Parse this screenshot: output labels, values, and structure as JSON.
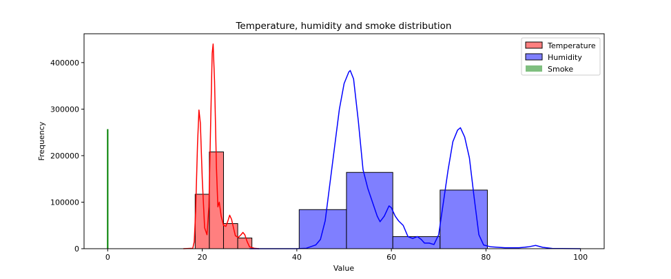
{
  "chart_data": {
    "type": "histogram",
    "title": "Temperature, humidity and smoke distribution",
    "xlabel": "Value",
    "ylabel": "Frequency",
    "xlim": [
      -5,
      105
    ],
    "ylim": [
      0,
      462000
    ],
    "x_ticks": [
      0,
      20,
      40,
      60,
      80,
      100
    ],
    "y_ticks": [
      0,
      100000,
      200000,
      300000,
      400000
    ],
    "legend_position": "top-right",
    "series": [
      {
        "name": "Temperature",
        "color": "#ff0000",
        "fill": "#ff7f7f",
        "bins": [
          {
            "x0": 18.5,
            "x1": 21.5,
            "count": 117000
          },
          {
            "x0": 21.5,
            "x1": 24.5,
            "count": 208000
          },
          {
            "x0": 24.5,
            "x1": 27.5,
            "count": 54000
          },
          {
            "x0": 27.5,
            "x1": 30.5,
            "count": 23000
          }
        ],
        "kde": [
          [
            16.0,
            0
          ],
          [
            18.0,
            1000
          ],
          [
            18.3,
            15000
          ],
          [
            18.6,
            80000
          ],
          [
            19.0,
            225000
          ],
          [
            19.3,
            298000
          ],
          [
            19.6,
            270000
          ],
          [
            20.0,
            150000
          ],
          [
            20.5,
            45000
          ],
          [
            21.0,
            30000
          ],
          [
            21.4,
            90000
          ],
          [
            21.8,
            280000
          ],
          [
            22.1,
            420000
          ],
          [
            22.3,
            440000
          ],
          [
            22.6,
            360000
          ],
          [
            23.0,
            175000
          ],
          [
            23.3,
            90000
          ],
          [
            23.6,
            100000
          ],
          [
            24.0,
            70000
          ],
          [
            24.5,
            50000
          ],
          [
            25.0,
            48000
          ],
          [
            25.5,
            62000
          ],
          [
            25.8,
            72000
          ],
          [
            26.2,
            63000
          ],
          [
            26.6,
            45000
          ],
          [
            27.0,
            28000
          ],
          [
            27.6,
            24000
          ],
          [
            28.2,
            30000
          ],
          [
            28.6,
            35000
          ],
          [
            29.0,
            30000
          ],
          [
            29.5,
            15000
          ],
          [
            30.0,
            4000
          ],
          [
            31.0,
            1000
          ],
          [
            32.0,
            0
          ]
        ]
      },
      {
        "name": "Humidity",
        "color": "#0000ff",
        "fill": "#7f7fff",
        "bins": [
          {
            "x0": 40.5,
            "x1": 50.5,
            "count": 84000
          },
          {
            "x0": 50.5,
            "x1": 60.3,
            "count": 164000
          },
          {
            "x0": 60.3,
            "x1": 70.3,
            "count": 26000
          },
          {
            "x0": 70.3,
            "x1": 80.3,
            "count": 126000
          }
        ],
        "kde": [
          [
            30.0,
            0
          ],
          [
            40.0,
            0
          ],
          [
            42.0,
            1000
          ],
          [
            44.0,
            8000
          ],
          [
            45.0,
            20000
          ],
          [
            46.0,
            60000
          ],
          [
            47.0,
            140000
          ],
          [
            48.0,
            220000
          ],
          [
            49.0,
            300000
          ],
          [
            50.0,
            355000
          ],
          [
            51.0,
            380000
          ],
          [
            51.3,
            383000
          ],
          [
            52.0,
            365000
          ],
          [
            53.0,
            275000
          ],
          [
            54.0,
            170000
          ],
          [
            55.0,
            130000
          ],
          [
            56.0,
            100000
          ],
          [
            57.0,
            70000
          ],
          [
            57.6,
            58000
          ],
          [
            58.5,
            70000
          ],
          [
            59.5,
            92000
          ],
          [
            60.0,
            88000
          ],
          [
            60.8,
            70000
          ],
          [
            61.5,
            60000
          ],
          [
            62.5,
            50000
          ],
          [
            63.5,
            26000
          ],
          [
            64.5,
            22000
          ],
          [
            65.5,
            26000
          ],
          [
            66.3,
            20000
          ],
          [
            67.0,
            12000
          ],
          [
            68.0,
            12000
          ],
          [
            69.0,
            9000
          ],
          [
            70.0,
            30000
          ],
          [
            71.0,
            100000
          ],
          [
            72.0,
            170000
          ],
          [
            73.0,
            230000
          ],
          [
            74.0,
            255000
          ],
          [
            74.6,
            260000
          ],
          [
            75.5,
            240000
          ],
          [
            76.5,
            195000
          ],
          [
            77.5,
            110000
          ],
          [
            78.5,
            30000
          ],
          [
            79.5,
            8000
          ],
          [
            81.0,
            4000
          ],
          [
            84.0,
            2000
          ],
          [
            87.0,
            2000
          ],
          [
            89.0,
            4000
          ],
          [
            90.5,
            7000
          ],
          [
            92.0,
            3000
          ],
          [
            94.0,
            500
          ],
          [
            100.0,
            0
          ]
        ]
      },
      {
        "name": "Smoke",
        "color": "#008000",
        "fill": "#7fbf7f",
        "bins": [
          {
            "x0": -0.05,
            "x1": 0.05,
            "count": 257000
          }
        ],
        "kde": [
          [
            0.0,
            0
          ],
          [
            0.0,
            257000
          ]
        ]
      }
    ]
  }
}
